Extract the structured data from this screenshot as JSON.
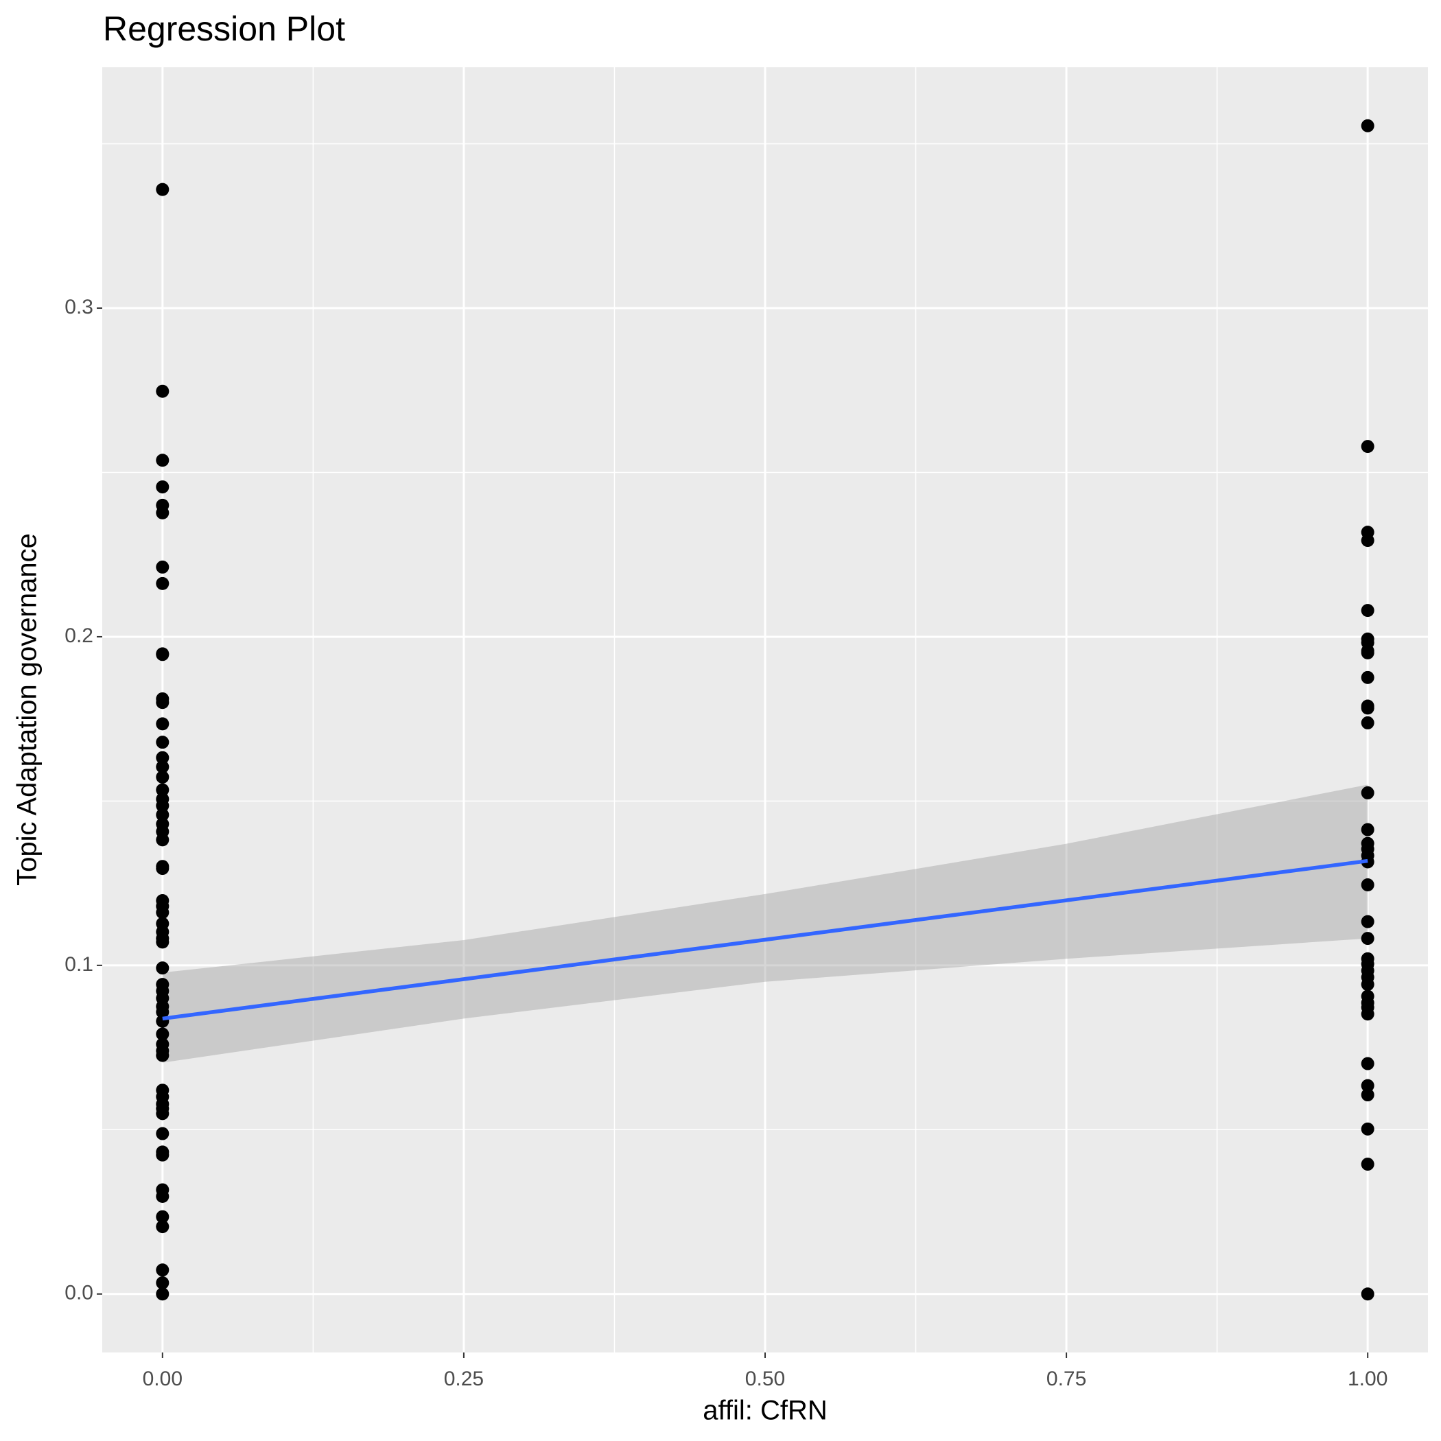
{
  "chart_data": {
    "type": "scatter",
    "title": "Regression Plot",
    "x_label": "affil: CfRN",
    "y_label": "Topic Adaptation governance",
    "xlim": [
      -0.05,
      1.05
    ],
    "ylim": [
      -0.0178,
      0.3733
    ],
    "xticks": [
      {
        "value": 0,
        "label": "0.00"
      },
      {
        "value": 0.25,
        "label": "0.25"
      },
      {
        "value": 0.5,
        "label": "0.50"
      },
      {
        "value": 0.75,
        "label": "0.75"
      },
      {
        "value": 1,
        "label": "1.00"
      }
    ],
    "yticks": [
      {
        "value": 0,
        "label": "0.0"
      },
      0.1,
      0.2,
      0.3
    ],
    "x_minor_ticks": [
      0.125,
      0.375,
      0.625,
      0.875
    ],
    "y_minor_ticks": [
      0.05,
      0.15,
      0.25,
      0.35
    ],
    "grid": true,
    "point_color": "#000000",
    "line_color": "#3366ff",
    "band_color": "#999999",
    "x": [
      0,
      0,
      0,
      0,
      0,
      0,
      0,
      0,
      0,
      0,
      0,
      0,
      0,
      0,
      0,
      0,
      0,
      0,
      0,
      0,
      0,
      0,
      0,
      0,
      0,
      0,
      0,
      0,
      0,
      0,
      0,
      0,
      0,
      0,
      0,
      0,
      0,
      0,
      0,
      0,
      0,
      0,
      0,
      0,
      0,
      0,
      0,
      0,
      0,
      0,
      0,
      0,
      0,
      0,
      0,
      0,
      0,
      0,
      0,
      1,
      1,
      1,
      1,
      1,
      1,
      1,
      1,
      1,
      1,
      1,
      1,
      1,
      1,
      1,
      1,
      1,
      1,
      1,
      1,
      1,
      1,
      1,
      1,
      1,
      1,
      1,
      1,
      1,
      1,
      1,
      1,
      1,
      1,
      1,
      1,
      1
    ],
    "values": [
      0.3361,
      0.2747,
      0.2537,
      0.2456,
      0.24,
      0.2377,
      0.2212,
      0.2162,
      0.1948,
      0.1946,
      0.1811,
      0.18,
      0.1735,
      0.1679,
      0.1632,
      0.1604,
      0.1573,
      0.1534,
      0.1506,
      0.1486,
      0.1458,
      0.143,
      0.1407,
      0.1382,
      0.1301,
      0.1295,
      0.1197,
      0.118,
      0.1161,
      0.1127,
      0.1102,
      0.1082,
      0.1071,
      0.0992,
      0.0942,
      0.0922,
      0.09,
      0.0875,
      0.0858,
      0.083,
      0.0791,
      0.076,
      0.074,
      0.0726,
      0.062,
      0.06,
      0.0578,
      0.0564,
      0.0549,
      0.0488,
      0.0432,
      0.0423,
      0.0317,
      0.0297,
      0.0235,
      0.0205,
      0.0073,
      0.0034,
      0,
      0.3555,
      0.2579,
      0.2318,
      0.2293,
      0.208,
      0.1993,
      0.1982,
      0.1957,
      0.1951,
      0.1876,
      0.1789,
      0.1783,
      0.1738,
      0.1525,
      0.1413,
      0.1371,
      0.1354,
      0.1334,
      0.1315,
      0.1245,
      0.1133,
      0.1082,
      0.102,
      0.1004,
      0.0984,
      0.0964,
      0.0942,
      0.0906,
      0.0886,
      0.0872,
      0.0852,
      0.0701,
      0.0634,
      0.0606,
      0.0502,
      0.0395,
      0
    ],
    "fit": {
      "x": [
        0,
        1
      ],
      "values": [
        0.0838,
        0.1318
      ]
    },
    "band": {
      "x": [
        0,
        0.25,
        0.5,
        0.75,
        1
      ],
      "upper": [
        0.0978,
        0.1077,
        0.1217,
        0.137,
        0.155
      ],
      "lower": [
        0.0704,
        0.0838,
        0.095,
        0.102,
        0.1082
      ]
    }
  }
}
